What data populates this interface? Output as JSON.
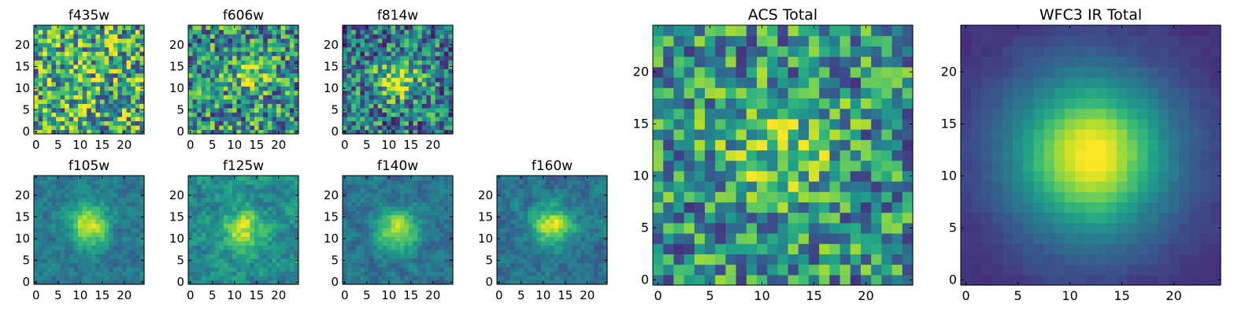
{
  "chart_data": [
    {
      "type": "heatmap",
      "title": "f435w",
      "xticks": [
        "0",
        "5",
        "10",
        "15",
        "20"
      ],
      "yticks": [
        "0",
        "5",
        "10",
        "15",
        "20"
      ],
      "xlim": [
        -0.5,
        24.5
      ],
      "ylim": [
        -0.5,
        24.5
      ],
      "grid_size": 25,
      "peak": [
        12,
        12
      ],
      "peak_strength": 0.05,
      "noise": 0.55,
      "base": 0.62
    },
    {
      "type": "heatmap",
      "title": "f606w",
      "xticks": [
        "0",
        "5",
        "10",
        "15",
        "20"
      ],
      "yticks": [
        "0",
        "5",
        "10",
        "15",
        "20"
      ],
      "xlim": [
        -0.5,
        24.5
      ],
      "ylim": [
        -0.5,
        24.5
      ],
      "grid_size": 25,
      "peak": [
        13,
        13
      ],
      "peak_strength": 0.25,
      "noise": 0.5,
      "base": 0.5
    },
    {
      "type": "heatmap",
      "title": "f814w",
      "xticks": [
        "0",
        "5",
        "10",
        "15",
        "20"
      ],
      "yticks": [
        "0",
        "5",
        "10",
        "15",
        "20"
      ],
      "xlim": [
        -0.5,
        24.5
      ],
      "ylim": [
        -0.5,
        24.5
      ],
      "grid_size": 25,
      "peak": [
        12,
        12
      ],
      "peak_strength": 0.5,
      "noise": 0.45,
      "base": 0.42
    },
    {
      "type": "heatmap",
      "title": "f105w",
      "xticks": [
        "0",
        "5",
        "10",
        "15",
        "20"
      ],
      "yticks": [
        "0",
        "5",
        "10",
        "15",
        "20"
      ],
      "xlim": [
        -0.5,
        24.5
      ],
      "ylim": [
        -0.5,
        24.5
      ],
      "grid_size": 25,
      "peak": [
        12,
        13
      ],
      "peak_strength": 0.55,
      "noise": 0.22,
      "base": 0.4
    },
    {
      "type": "heatmap",
      "title": "f125w",
      "xticks": [
        "0",
        "5",
        "10",
        "15",
        "20"
      ],
      "yticks": [
        "0",
        "5",
        "10",
        "15",
        "20"
      ],
      "xlim": [
        -0.5,
        24.5
      ],
      "ylim": [
        -0.5,
        24.5
      ],
      "grid_size": 25,
      "peak": [
        12,
        12
      ],
      "peak_strength": 0.45,
      "noise": 0.28,
      "base": 0.48
    },
    {
      "type": "heatmap",
      "title": "f140w",
      "xticks": [
        "0",
        "5",
        "10",
        "15",
        "20"
      ],
      "yticks": [
        "0",
        "5",
        "10",
        "15",
        "20"
      ],
      "xlim": [
        -0.5,
        24.5
      ],
      "ylim": [
        -0.5,
        24.5
      ],
      "grid_size": 25,
      "peak": [
        12,
        12
      ],
      "peak_strength": 0.55,
      "noise": 0.22,
      "base": 0.38
    },
    {
      "type": "heatmap",
      "title": "f160w",
      "xticks": [
        "0",
        "5",
        "10",
        "15",
        "20"
      ],
      "yticks": [
        "0",
        "5",
        "10",
        "15",
        "20"
      ],
      "xlim": [
        -0.5,
        24.5
      ],
      "ylim": [
        -0.5,
        24.5
      ],
      "grid_size": 25,
      "peak": [
        12,
        13
      ],
      "peak_strength": 0.55,
      "noise": 0.22,
      "base": 0.38
    },
    {
      "type": "heatmap",
      "title": "ACS Total",
      "xticks": [
        "0",
        "5",
        "10",
        "15",
        "20"
      ],
      "yticks": [
        "0",
        "5",
        "10",
        "15",
        "20"
      ],
      "xlim": [
        -0.5,
        24.5
      ],
      "ylim": [
        -0.5,
        24.5
      ],
      "grid_size": 25,
      "peak": [
        12,
        12
      ],
      "peak_strength": 0.3,
      "noise": 0.45,
      "base": 0.5
    },
    {
      "type": "heatmap",
      "title": "WFC3 IR Total",
      "xticks": [
        "0",
        "5",
        "10",
        "15",
        "20"
      ],
      "yticks": [
        "0",
        "5",
        "10",
        "15",
        "20"
      ],
      "xlim": [
        -0.5,
        24.5
      ],
      "ylim": [
        -0.5,
        24.5
      ],
      "grid_size": 25,
      "peak": [
        12,
        12
      ],
      "peak_strength": 0.95,
      "noise": 0.1,
      "base": 0.08
    }
  ],
  "colormap": [
    "#440154",
    "#482878",
    "#3e4989",
    "#31688e",
    "#26828e",
    "#1f9e89",
    "#35b779",
    "#6ece58",
    "#b5de2b",
    "#fde725"
  ]
}
